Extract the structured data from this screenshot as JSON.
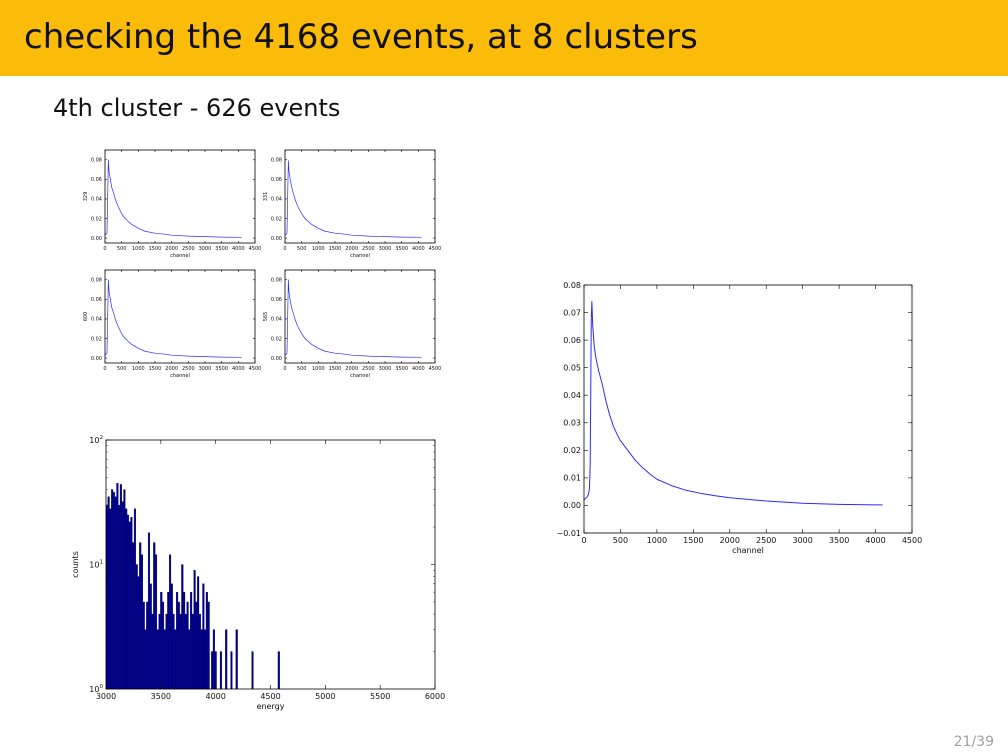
{
  "slide": {
    "title": "checking the 4168 events, at 8 clusters",
    "subtitle": "4th cluster - 626 events",
    "page_number": "21/39"
  },
  "colors": {
    "title_bar": "#fbbc09",
    "line": "#2b2bff",
    "bars": "#00008b"
  },
  "chart_data": [
    {
      "type": "line",
      "panel": "small-top-left",
      "xlabel": "channel",
      "ylabel": "329",
      "xlim": [
        0,
        4500
      ],
      "ylim": [
        -0.005,
        0.09
      ],
      "xticks": [
        "0",
        "500",
        "1000",
        "1500",
        "2000",
        "2500",
        "3000",
        "3500",
        "4000",
        "4500"
      ],
      "yticks": [
        "0.00",
        "0.02",
        "0.04",
        "0.06",
        "0.08"
      ],
      "x": [
        0,
        60,
        100,
        120,
        150,
        200,
        250,
        300,
        350,
        400,
        500,
        600,
        700,
        800,
        1000,
        1200,
        1500,
        1800,
        2000,
        2500,
        3000,
        3500,
        4096
      ],
      "y": [
        0.003,
        0.005,
        0.08,
        0.068,
        0.062,
        0.052,
        0.047,
        0.041,
        0.036,
        0.032,
        0.025,
        0.02,
        0.017,
        0.014,
        0.01,
        0.007,
        0.005,
        0.004,
        0.003,
        0.002,
        0.0015,
        0.001,
        0.0008
      ]
    },
    {
      "type": "line",
      "panel": "small-top-right",
      "xlabel": "channel",
      "ylabel": "331",
      "xlim": [
        0,
        4500
      ],
      "ylim": [
        -0.005,
        0.09
      ],
      "xticks": [
        "0",
        "500",
        "1000",
        "1500",
        "2000",
        "2500",
        "3000",
        "3500",
        "4000",
        "4500"
      ],
      "yticks": [
        "0.00",
        "0.02",
        "0.04",
        "0.06",
        "0.08"
      ],
      "x": [
        0,
        60,
        100,
        120,
        150,
        200,
        250,
        300,
        350,
        400,
        500,
        600,
        700,
        800,
        1000,
        1200,
        1500,
        1800,
        2000,
        2500,
        3000,
        3500,
        4096
      ],
      "y": [
        0.003,
        0.005,
        0.079,
        0.068,
        0.061,
        0.052,
        0.046,
        0.04,
        0.035,
        0.031,
        0.025,
        0.02,
        0.017,
        0.014,
        0.01,
        0.007,
        0.005,
        0.004,
        0.003,
        0.002,
        0.0015,
        0.001,
        0.0008
      ]
    },
    {
      "type": "line",
      "panel": "small-bottom-left",
      "xlabel": "channel",
      "ylabel": "600",
      "xlim": [
        0,
        4500
      ],
      "ylim": [
        -0.005,
        0.09
      ],
      "xticks": [
        "0",
        "500",
        "1000",
        "1500",
        "2000",
        "2500",
        "3000",
        "3500",
        "4000",
        "4500"
      ],
      "yticks": [
        "0.00",
        "0.02",
        "0.04",
        "0.06",
        "0.08"
      ],
      "x": [
        0,
        60,
        100,
        120,
        150,
        200,
        250,
        300,
        350,
        400,
        500,
        600,
        700,
        800,
        1000,
        1200,
        1500,
        1800,
        2000,
        2500,
        3000,
        3500,
        4096
      ],
      "y": [
        0.003,
        0.005,
        0.08,
        0.068,
        0.062,
        0.052,
        0.047,
        0.041,
        0.036,
        0.032,
        0.025,
        0.02,
        0.017,
        0.014,
        0.01,
        0.007,
        0.005,
        0.004,
        0.003,
        0.002,
        0.0015,
        0.001,
        0.0008
      ]
    },
    {
      "type": "line",
      "panel": "small-bottom-right",
      "xlabel": "channel",
      "ylabel": "565",
      "xlim": [
        0,
        4500
      ],
      "ylim": [
        -0.005,
        0.09
      ],
      "xticks": [
        "0",
        "500",
        "1000",
        "1500",
        "2000",
        "2500",
        "3000",
        "3500",
        "4000",
        "4500"
      ],
      "yticks": [
        "0.00",
        "0.02",
        "0.04",
        "0.06",
        "0.08"
      ],
      "x": [
        0,
        60,
        100,
        120,
        150,
        200,
        250,
        300,
        350,
        400,
        500,
        600,
        700,
        800,
        1000,
        1200,
        1500,
        1800,
        2000,
        2500,
        3000,
        3500,
        4096
      ],
      "y": [
        0.003,
        0.005,
        0.08,
        0.067,
        0.06,
        0.051,
        0.046,
        0.04,
        0.035,
        0.031,
        0.025,
        0.02,
        0.017,
        0.014,
        0.01,
        0.007,
        0.005,
        0.004,
        0.003,
        0.002,
        0.0015,
        0.001,
        0.0008
      ]
    },
    {
      "type": "bar",
      "panel": "energy-histogram",
      "xlabel": "energy",
      "ylabel": "counts",
      "log_y": true,
      "xlim": [
        3000,
        6000
      ],
      "ylim": [
        1,
        100
      ],
      "xticks": [
        "3000",
        "3500",
        "4000",
        "4500",
        "5000",
        "5500",
        "6000"
      ],
      "yticks": [
        "10^0",
        "10^1",
        "10^2"
      ],
      "bin_width": 16,
      "x": [
        3000,
        3016,
        3032,
        3048,
        3064,
        3080,
        3096,
        3112,
        3128,
        3144,
        3160,
        3176,
        3192,
        3208,
        3224,
        3240,
        3256,
        3272,
        3288,
        3304,
        3320,
        3336,
        3352,
        3368,
        3384,
        3400,
        3416,
        3432,
        3448,
        3464,
        3480,
        3496,
        3512,
        3528,
        3544,
        3560,
        3576,
        3592,
        3608,
        3624,
        3640,
        3656,
        3672,
        3688,
        3704,
        3720,
        3736,
        3752,
        3768,
        3784,
        3800,
        3816,
        3832,
        3848,
        3864,
        3880,
        3896,
        3912,
        3928,
        3960,
        3976,
        3992,
        4040,
        4088,
        4136,
        4184,
        4328,
        4568
      ],
      "values": [
        30,
        35,
        28,
        40,
        38,
        35,
        45,
        30,
        44,
        32,
        40,
        28,
        25,
        22,
        24,
        15,
        28,
        10,
        8,
        15,
        12,
        5,
        3,
        5,
        18,
        7,
        4,
        15,
        12,
        3,
        4,
        6,
        5,
        3,
        4,
        6,
        12,
        7,
        4,
        3,
        6,
        5,
        4,
        10,
        6,
        4,
        5,
        3,
        6,
        4,
        9,
        5,
        8,
        4,
        3,
        7,
        3,
        6,
        5,
        2,
        3,
        2,
        2,
        3,
        2,
        3,
        2,
        2
      ]
    },
    {
      "type": "line",
      "panel": "mean-shape",
      "xlabel": "channel",
      "ylabel": "",
      "xlim": [
        0,
        4500
      ],
      "ylim": [
        -0.01,
        0.08
      ],
      "xticks": [
        "0",
        "500",
        "1000",
        "1500",
        "2000",
        "2500",
        "3000",
        "3500",
        "4000",
        "4500"
      ],
      "yticks": [
        "−0.01",
        "0.00",
        "0.01",
        "0.02",
        "0.03",
        "0.04",
        "0.05",
        "0.06",
        "0.07",
        "0.08"
      ],
      "x": [
        0,
        40,
        60,
        75,
        85,
        95,
        100,
        108,
        120,
        140,
        160,
        200,
        250,
        300,
        350,
        400,
        450,
        500,
        600,
        700,
        800,
        900,
        1000,
        1200,
        1400,
        1600,
        1800,
        2000,
        2500,
        3000,
        3500,
        4000,
        4096
      ],
      "y": [
        0.002,
        0.003,
        0.004,
        0.006,
        0.015,
        0.05,
        0.068,
        0.074,
        0.065,
        0.058,
        0.054,
        0.049,
        0.044,
        0.038,
        0.033,
        0.029,
        0.026,
        0.0235,
        0.02,
        0.0165,
        0.0138,
        0.0115,
        0.0095,
        0.0072,
        0.0055,
        0.0044,
        0.0035,
        0.0028,
        0.0016,
        0.0008,
        0.0004,
        0.0002,
        0.0002
      ]
    }
  ]
}
